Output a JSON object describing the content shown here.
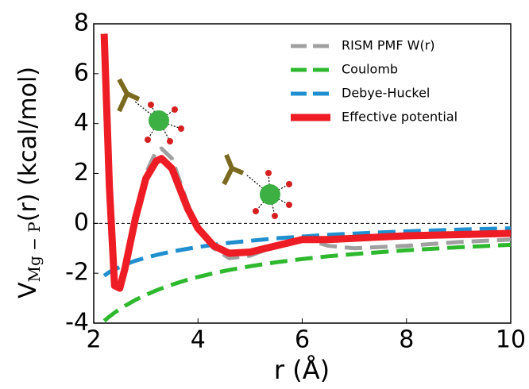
{
  "chart_data": {
    "type": "line",
    "xlabel": "r (Å)",
    "ylabel": {
      "main": "V",
      "sub": "Mg − P",
      "rest": "(r) (kcal/mol)"
    },
    "x": [
      2.2,
      2.3,
      2.4,
      2.5,
      2.6,
      2.8,
      3.0,
      3.2,
      3.3,
      3.5,
      3.8,
      4.0,
      4.3,
      4.6,
      5.0,
      5.5,
      6.0,
      6.5,
      7.0,
      8.0,
      9.0,
      10.0
    ],
    "series": [
      {
        "name": "RISM PMF W(r)",
        "color": "#a0a0a0",
        "dash": true,
        "values": [
          null,
          null,
          -2.5,
          -2.6,
          -1.8,
          0.3,
          2.0,
          2.9,
          3.0,
          2.6,
          0.8,
          -0.2,
          -1.0,
          -1.4,
          -1.3,
          -0.9,
          -0.6,
          -0.9,
          -1.0,
          -0.9,
          -0.75,
          -0.65
        ]
      },
      {
        "name": "Coulomb",
        "color": "#2db82d",
        "dash": true,
        "values": [
          -3.91,
          -3.74,
          -3.58,
          -3.44,
          -3.31,
          -3.07,
          -2.87,
          -2.69,
          -2.61,
          -2.46,
          -2.26,
          -2.15,
          -2.0,
          -1.87,
          -1.72,
          -1.56,
          -1.43,
          -1.32,
          -1.23,
          -1.08,
          -0.96,
          -0.86
        ]
      },
      {
        "name": "Debye-Huckel",
        "color": "#1f8fcf",
        "dash": true,
        "values": [
          -2.1,
          -1.95,
          -1.85,
          -1.75,
          -1.65,
          -1.5,
          -1.38,
          -1.27,
          -1.22,
          -1.13,
          -1.02,
          -0.95,
          -0.86,
          -0.78,
          -0.7,
          -0.6,
          -0.53,
          -0.46,
          -0.41,
          -0.32,
          -0.25,
          -0.2
        ]
      },
      {
        "name": "Effective potential",
        "color": "#ee1c24",
        "dash": false,
        "values": [
          7.6,
          1.5,
          -2.5,
          -2.6,
          -1.8,
          0.2,
          1.8,
          2.5,
          2.6,
          2.2,
          0.6,
          -0.2,
          -0.9,
          -1.2,
          -1.15,
          -0.9,
          -0.65,
          -0.65,
          -0.6,
          -0.5,
          -0.45,
          -0.4
        ]
      }
    ],
    "reference_line": 0,
    "xlim": [
      2,
      10
    ],
    "xticks": [
      2,
      4,
      6,
      8,
      10
    ],
    "ylim": [
      -4,
      8
    ],
    "yticks": [
      -4,
      -2,
      0,
      2,
      4,
      6,
      8
    ],
    "legend": "upper right"
  }
}
